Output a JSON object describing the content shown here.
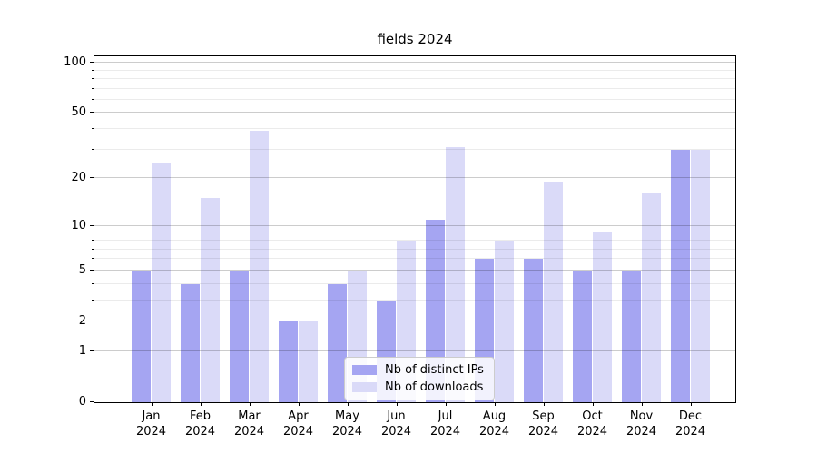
{
  "title": "fields 2024",
  "chart_data": {
    "type": "bar",
    "title": "fields 2024",
    "xlabel": "",
    "ylabel": "",
    "yscale": "log1p",
    "ylim": [
      0,
      112
    ],
    "grid": true,
    "legend_position": "bottom-center",
    "categories": [
      "Jan 2024",
      "Feb 2024",
      "Mar 2024",
      "Apr 2024",
      "May 2024",
      "Jun 2024",
      "Jul 2024",
      "Aug 2024",
      "Sep 2024",
      "Oct 2024",
      "Nov 2024",
      "Dec 2024"
    ],
    "series": [
      {
        "name": "Nb of distinct IPs",
        "color": "#a5a5f2",
        "values": [
          5,
          4,
          5,
          2,
          4,
          3,
          11,
          6,
          6,
          5,
          5,
          30
        ]
      },
      {
        "name": "Nb of downloads",
        "color": "#dadaf8",
        "values": [
          25,
          15,
          39,
          2,
          5,
          8,
          31,
          8,
          19,
          9,
          16,
          30
        ]
      }
    ],
    "yticks": [
      0,
      1,
      2,
      5,
      10,
      20,
      50,
      100
    ],
    "minor_gridlines": [
      3,
      4,
      6,
      7,
      8,
      9,
      30,
      40,
      60,
      70,
      80,
      90
    ]
  },
  "colors": {
    "series_distinct_ips": "#a5a5f2",
    "series_downloads": "#dadaf8",
    "grid_major": "#cccccc",
    "grid_minor": "#ebebeb",
    "axis": "#000000",
    "background": "#ffffff",
    "legend_border": "#cccccc"
  }
}
